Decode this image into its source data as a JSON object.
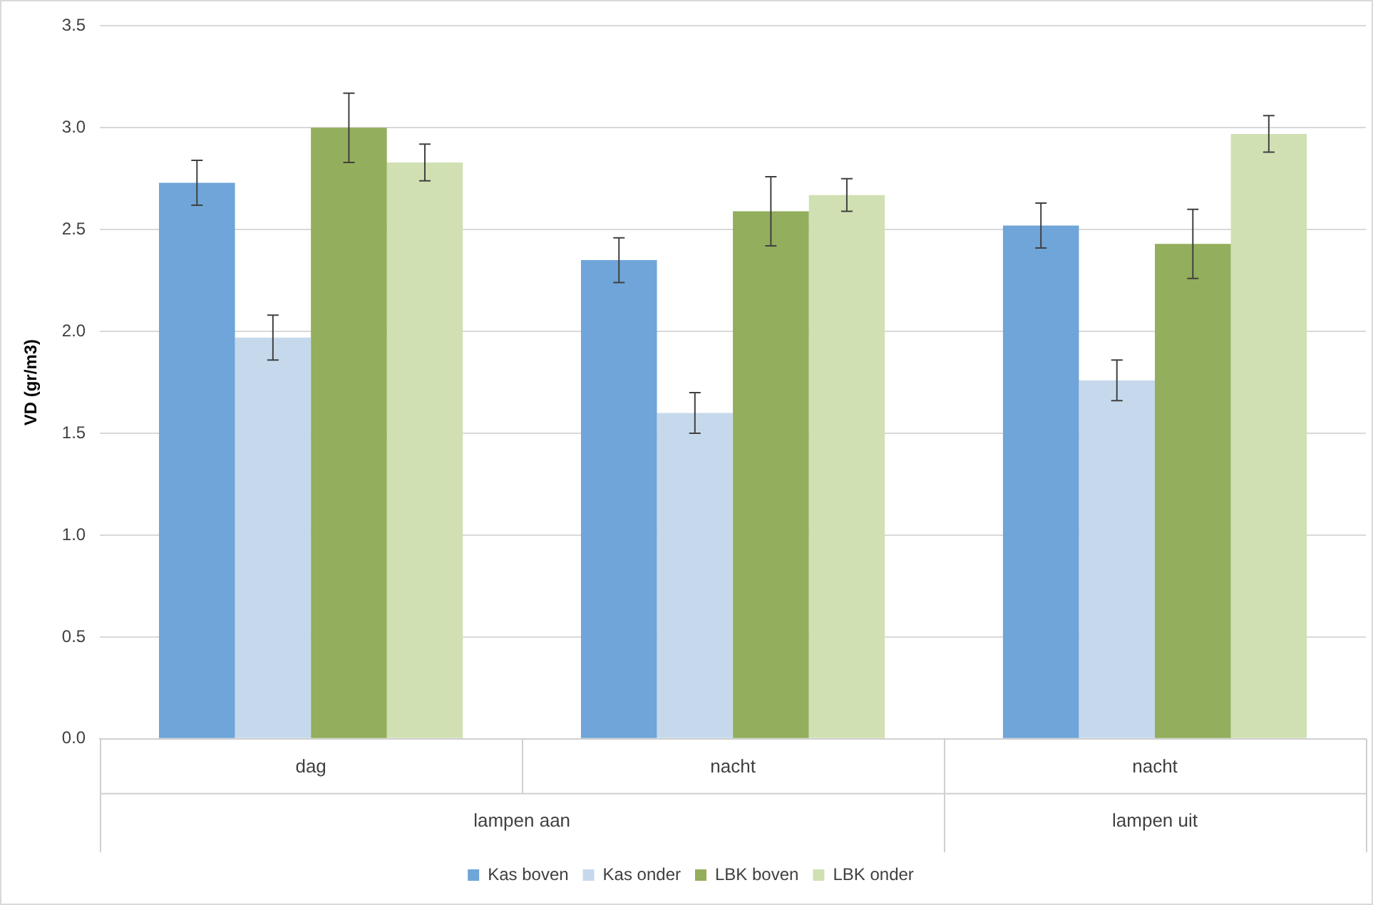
{
  "chart_data": {
    "type": "bar",
    "ylabel": "VD (gr/m3)",
    "categories": [
      "dag",
      "nacht",
      "nacht"
    ],
    "annotations": [
      "lampen aan",
      "lampen uit"
    ],
    "series": [
      {
        "name": "Kas boven",
        "color": "#6fa5d8",
        "values": [
          2.73,
          2.35,
          2.52
        ],
        "errors": [
          0.11,
          0.11,
          0.11
        ]
      },
      {
        "name": "Kas onder",
        "color": "#c6d9ec",
        "values": [
          1.97,
          1.6,
          1.76
        ],
        "errors": [
          0.11,
          0.1,
          0.1
        ]
      },
      {
        "name": "LBK boven",
        "color": "#93ae5c",
        "values": [
          3.0,
          2.59,
          2.43
        ],
        "errors": [
          0.17,
          0.17,
          0.17
        ]
      },
      {
        "name": "LBK onder",
        "color": "#d0e0b3",
        "values": [
          2.83,
          2.67,
          2.97
        ],
        "errors": [
          0.09,
          0.08,
          0.09
        ]
      }
    ],
    "ylim": [
      0,
      3.5
    ],
    "yticks": [
      {
        "value": 0,
        "label": "0.0"
      },
      {
        "value": 0.5,
        "label": "0.5"
      },
      {
        "value": 1,
        "label": "1.0"
      },
      {
        "value": 1.5,
        "label": "1.5"
      },
      {
        "value": 2,
        "label": "2.0"
      },
      {
        "value": 2.5,
        "label": "2.5"
      },
      {
        "value": 3,
        "label": "3.0"
      },
      {
        "value": 3.5,
        "label": "3.5"
      }
    ],
    "grid": "y",
    "legend": "bottom"
  }
}
